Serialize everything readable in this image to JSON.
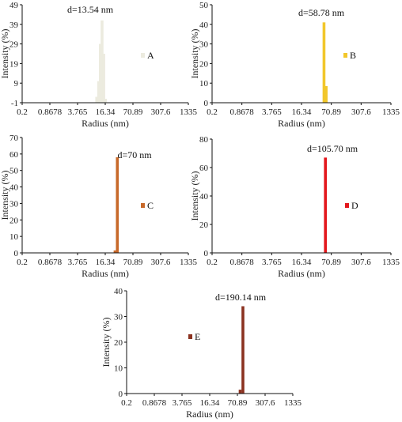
{
  "chart_data": [
    {
      "type": "bar",
      "panel": "A",
      "annotation": "d=13.54 nm",
      "legend": "A",
      "color": "#ecebdf",
      "xlabel": "Radius (nm)",
      "ylabel": "Intensity (%)",
      "x_scale": "log",
      "xticks": [
        "0.2",
        "0.8678",
        "3.765",
        "16.34",
        "70.89",
        "307.6",
        "1335"
      ],
      "xlim": [
        0.2,
        1335
      ],
      "yticks": [
        "-1",
        "9",
        "19",
        "29",
        "39",
        "49"
      ],
      "ylim": [
        -1,
        49
      ],
      "bars": [
        {
          "x": 10.4,
          "y": 2
        },
        {
          "x": 11.5,
          "y": 10
        },
        {
          "x": 12.6,
          "y": 29
        },
        {
          "x": 13.8,
          "y": 41
        },
        {
          "x": 15.1,
          "y": 24
        },
        {
          "x": 16.5,
          "y": 1
        }
      ]
    },
    {
      "type": "bar",
      "panel": "B",
      "annotation": "d=58.78 nm",
      "legend": "B",
      "color": "#f2c72b",
      "xlabel": "Radius (nm)",
      "ylabel": "Intensity (%)",
      "x_scale": "log",
      "xticks": [
        "0.2",
        "0.8678",
        "3.765",
        "16.34",
        "70.89",
        "307.6",
        "1335"
      ],
      "xlim": [
        0.2,
        1335
      ],
      "yticks": [
        "0",
        "10",
        "20",
        "30",
        "40",
        "50"
      ],
      "ylim": [
        0,
        50
      ],
      "bars": [
        {
          "x": 49.5,
          "y": 41
        },
        {
          "x": 55.0,
          "y": 8.5
        }
      ]
    },
    {
      "type": "bar",
      "panel": "C",
      "annotation": "d=70 nm",
      "legend": "C",
      "color": "#c8692a",
      "xlabel": "Radius (nm)",
      "ylabel": "Intensity (%)",
      "x_scale": "log",
      "xticks": [
        "0.2",
        "0.8678",
        "3.765",
        "16.34",
        "70.89",
        "307.6",
        "1335"
      ],
      "xlim": [
        0.2,
        1335
      ],
      "yticks": [
        "0",
        "10",
        "20",
        "30",
        "40",
        "50",
        "60",
        "70"
      ],
      "ylim": [
        0,
        70
      ],
      "bars": [
        {
          "x": 27.5,
          "y": 1.5
        },
        {
          "x": 31.0,
          "y": 58
        }
      ]
    },
    {
      "type": "bar",
      "panel": "D",
      "annotation": "d=105.70 nm",
      "legend": "D",
      "color": "#e3181d",
      "xlabel": "Radius (nm)",
      "ylabel": "Intensity (%)",
      "x_scale": "log",
      "xticks": [
        "0.2",
        "0.8678",
        "3.765",
        "16.34",
        "70.89",
        "307.6",
        "1335"
      ],
      "xlim": [
        0.2,
        1335
      ],
      "yticks": [
        "0",
        "20",
        "40",
        "60",
        "80"
      ],
      "ylim": [
        0,
        80
      ],
      "bars": [
        {
          "x": 53.0,
          "y": 67
        }
      ]
    },
    {
      "type": "bar",
      "panel": "E",
      "annotation": "d=190.14 nm",
      "legend": "E",
      "color": "#8b3220",
      "xlabel": "Radius (nm)",
      "ylabel": "Intensity (%)",
      "x_scale": "log",
      "xticks": [
        "0.2",
        "0.8678",
        "3.765",
        "16.34",
        "70.89",
        "307.6",
        "1335"
      ],
      "xlim": [
        0.2,
        1335
      ],
      "yticks": [
        "0",
        "10",
        "20",
        "30",
        "40"
      ],
      "ylim": [
        0,
        40
      ],
      "bars": [
        {
          "x": 82.0,
          "y": 1.5
        },
        {
          "x": 95.0,
          "y": 34
        }
      ]
    }
  ]
}
